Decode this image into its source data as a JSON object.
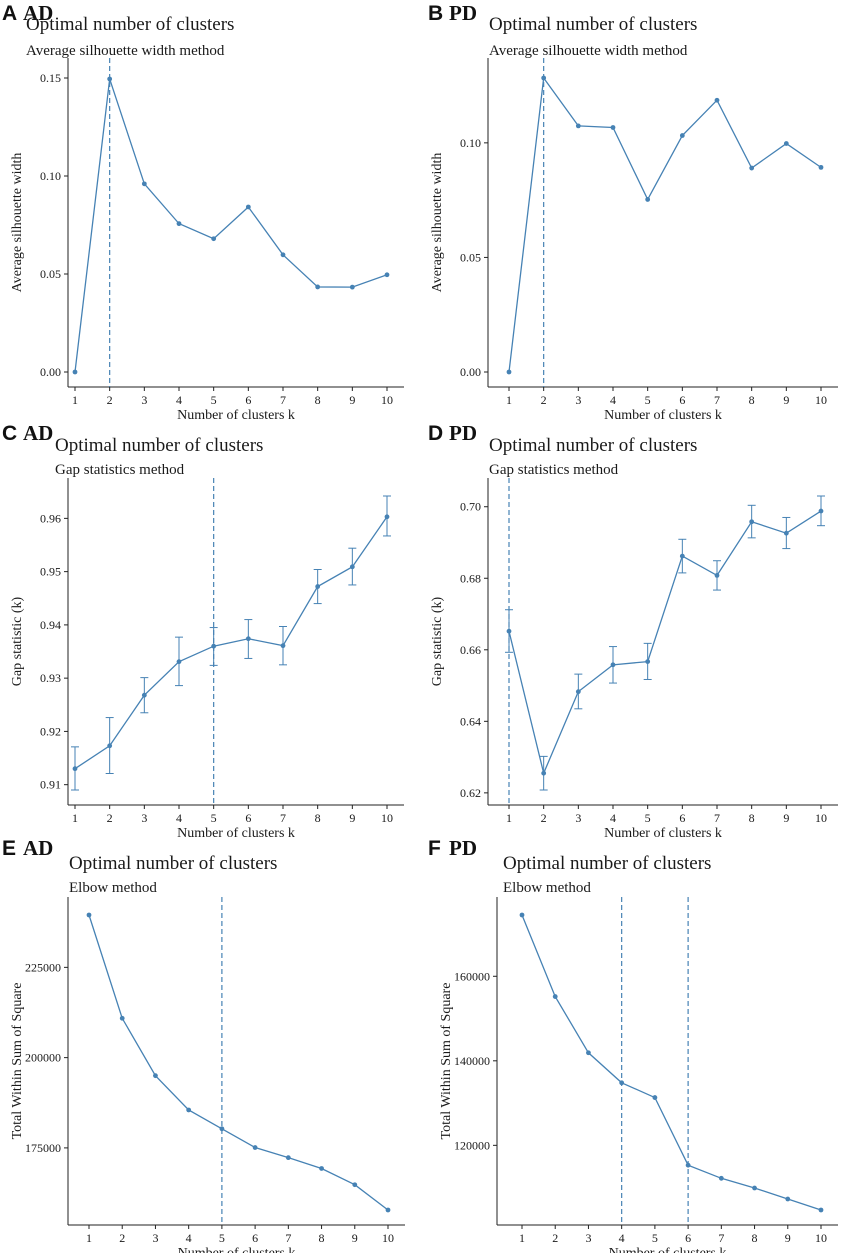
{
  "figure": {
    "accent_color": "#4682b4",
    "axis_color": "#222222"
  },
  "chart_data": [
    {
      "panel": "A",
      "group": "AD",
      "type": "line",
      "title": "Optimal number of clusters",
      "subtitle": "Average silhouette width method",
      "xlabel": "Number of clusters k",
      "ylabel": "Average silhouette width",
      "x": [
        1,
        2,
        3,
        4,
        5,
        6,
        7,
        8,
        9,
        10
      ],
      "values": [
        0.0,
        0.1495,
        0.096,
        0.0757,
        0.068,
        0.0842,
        0.0598,
        0.0434,
        0.0433,
        0.0496
      ],
      "xlim": [
        1,
        10
      ],
      "ylim": [
        0,
        0.15
      ],
      "yticks": [
        0.0,
        0.05,
        0.1,
        0.15
      ],
      "ytick_labels": [
        "0.00",
        "0.05",
        "0.10",
        "0.15"
      ],
      "xtick_labels": [
        "1",
        "2",
        "3",
        "4",
        "5",
        "6",
        "7",
        "8",
        "9",
        "10"
      ],
      "vlines": [
        2
      ]
    },
    {
      "panel": "B",
      "group": "PD",
      "type": "line",
      "title": "Optimal number of clusters",
      "subtitle": "Average silhouette width method",
      "xlabel": "Number of clusters k",
      "ylabel": "Average silhouette width",
      "x": [
        1,
        2,
        3,
        4,
        5,
        6,
        7,
        8,
        9,
        10
      ],
      "values": [
        0.0,
        0.1283,
        0.1074,
        0.1067,
        0.0753,
        0.1032,
        0.1186,
        0.089,
        0.0997,
        0.0893
      ],
      "xlim": [
        1,
        10
      ],
      "ylim": [
        0,
        0.1283
      ],
      "yticks": [
        0.0,
        0.05,
        0.1
      ],
      "ytick_labels": [
        "0.00",
        "0.05",
        "0.10"
      ],
      "xtick_labels": [
        "1",
        "2",
        "3",
        "4",
        "5",
        "6",
        "7",
        "8",
        "9",
        "10"
      ],
      "vlines": [
        2
      ]
    },
    {
      "panel": "C",
      "group": "AD",
      "type": "line",
      "title": "Optimal number of clusters",
      "subtitle": "Gap statistics method",
      "xlabel": "Number of clusters k",
      "ylabel": "Gap statistic (k)",
      "x": [
        1,
        2,
        3,
        4,
        5,
        6,
        7,
        8,
        9,
        10
      ],
      "values": [
        0.913,
        0.9173,
        0.9268,
        0.9331,
        0.936,
        0.9374,
        0.9361,
        0.9472,
        0.9509,
        0.9603
      ],
      "err_low": [
        0.909,
        0.9121,
        0.9235,
        0.9286,
        0.9324,
        0.9337,
        0.9325,
        0.944,
        0.9475,
        0.9567
      ],
      "err_high": [
        0.9171,
        0.9226,
        0.9301,
        0.9377,
        0.9395,
        0.941,
        0.9397,
        0.9504,
        0.9544,
        0.9642
      ],
      "xlim": [
        1,
        10
      ],
      "ylim": [
        0.909,
        0.9642
      ],
      "yticks": [
        0.91,
        0.92,
        0.93,
        0.94,
        0.95,
        0.96
      ],
      "ytick_labels": [
        "0.91",
        "0.92",
        "0.93",
        "0.94",
        "0.95",
        "0.96"
      ],
      "xtick_labels": [
        "1",
        "2",
        "3",
        "4",
        "5",
        "6",
        "7",
        "8",
        "9",
        "10"
      ],
      "vlines": [
        5
      ]
    },
    {
      "panel": "D",
      "group": "PD",
      "type": "line",
      "title": "Optimal number of clusters",
      "subtitle": "Gap statistics method",
      "xlabel": "Number of clusters k",
      "ylabel": "Gap statistic (k)",
      "x": [
        1,
        2,
        3,
        4,
        5,
        6,
        7,
        8,
        9,
        10
      ],
      "values": [
        0.6652,
        0.6255,
        0.6483,
        0.6558,
        0.6567,
        0.6862,
        0.6808,
        0.6958,
        0.6926,
        0.6988
      ],
      "err_low": [
        0.6593,
        0.6208,
        0.6435,
        0.6507,
        0.6517,
        0.6815,
        0.6767,
        0.6913,
        0.6883,
        0.6947
      ],
      "err_high": [
        0.6712,
        0.6302,
        0.6532,
        0.6609,
        0.6618,
        0.6909,
        0.6849,
        0.7004,
        0.697,
        0.703
      ],
      "xlim": [
        1,
        10
      ],
      "ylim": [
        0.6208,
        0.703
      ],
      "yticks": [
        0.62,
        0.64,
        0.66,
        0.68,
        0.7
      ],
      "ytick_labels": [
        "0.62",
        "0.64",
        "0.66",
        "0.68",
        "0.70"
      ],
      "xtick_labels": [
        "1",
        "2",
        "3",
        "4",
        "5",
        "6",
        "7",
        "8",
        "9",
        "10"
      ],
      "vlines": [
        1
      ]
    },
    {
      "panel": "E",
      "group": "AD",
      "type": "line",
      "title": "Optimal number of clusters",
      "subtitle": "Elbow method",
      "xlabel": "Number of clusters k",
      "ylabel": "Total Within Sum of Square",
      "x": [
        1,
        2,
        3,
        4,
        5,
        6,
        7,
        8,
        9,
        10
      ],
      "values": [
        239500,
        210900,
        195000,
        185500,
        180300,
        175100,
        172300,
        169300,
        164800,
        157800
      ],
      "xlim": [
        1,
        10
      ],
      "ylim": [
        157800,
        239500
      ],
      "yticks": [
        175000,
        200000,
        225000
      ],
      "ytick_labels": [
        "175000",
        "200000",
        "225000"
      ],
      "xtick_labels": [
        "1",
        "2",
        "3",
        "4",
        "5",
        "6",
        "7",
        "8",
        "9",
        "10"
      ],
      "vlines": [
        5
      ]
    },
    {
      "panel": "F",
      "group": "PD",
      "type": "line",
      "title": "Optimal number of clusters",
      "subtitle": "Elbow method",
      "xlabel": "Number of clusters k",
      "ylabel": "Total Within Sum of Square",
      "x": [
        1,
        2,
        3,
        4,
        5,
        6,
        7,
        8,
        9,
        10
      ],
      "values": [
        174500,
        155200,
        141900,
        134800,
        131300,
        115300,
        112200,
        109900,
        107300,
        104700
      ],
      "xlim": [
        1,
        10
      ],
      "ylim": [
        104700,
        174500
      ],
      "yticks": [
        120000,
        140000,
        160000
      ],
      "ytick_labels": [
        "120000",
        "140000",
        "160000"
      ],
      "xtick_labels": [
        "1",
        "2",
        "3",
        "4",
        "5",
        "6",
        "7",
        "8",
        "9",
        "10"
      ],
      "vlines": [
        4,
        6
      ]
    }
  ]
}
